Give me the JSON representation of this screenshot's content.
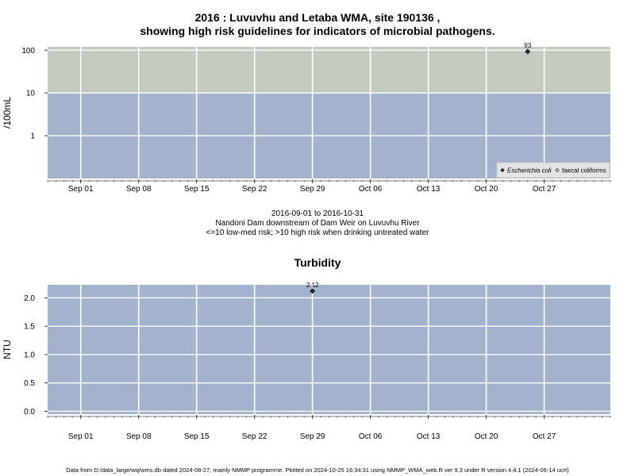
{
  "titles": {
    "main_line1": "2016 : Luvuvhu and Letaba WMA, site 190136 ,",
    "main_line2": "showing high risk guidelines for indicators of microbial pathogens.",
    "turbidity": "Turbidity"
  },
  "subtitle": {
    "date_range": "2016-09-01 to 2016-10-31",
    "site_desc": "Nandoni Dam downstream of Dam Weir on Luvuvhu River",
    "risk_note": "<=10 low-med risk; >10 high risk when drinking untreated water"
  },
  "footer": "Data from D:/data_large/wq/wms.db dated 2024-08-27, mainly NMMP programme. Plotted on 2024-10-25 16:34:31 using NMMP_WMA_web.R ver 9.3 under R version 4.4.1 (2024-06-14 ucrt)",
  "colors": {
    "panel_low": "#a3b3cd",
    "panel_high": "#c3cbbf",
    "grid": "#ffffff",
    "point": "#2a2a2a"
  },
  "chart_data": [
    {
      "type": "scatter",
      "name": "microbial",
      "ylabel": "/100mL",
      "yscale": "log",
      "ylim": [
        0.1,
        120
      ],
      "yticks": [
        1,
        10,
        100
      ],
      "ytick_labels": [
        "1",
        "10",
        "100"
      ],
      "xlim": [
        "2016-08-28",
        "2016-11-04"
      ],
      "xticks": [
        "2016-09-01",
        "2016-09-08",
        "2016-09-15",
        "2016-09-22",
        "2016-09-29",
        "2016-10-06",
        "2016-10-13",
        "2016-10-20",
        "2016-10-27"
      ],
      "xtick_labels": [
        "Sep 01",
        "Sep 08",
        "Sep 15",
        "Sep 22",
        "Sep 29",
        "Oct 06",
        "Oct 13",
        "Oct 20",
        "Oct 27"
      ],
      "guideline_bands": [
        {
          "from": 0.1,
          "to": 10,
          "risk": "low-med"
        },
        {
          "from": 10,
          "to": 120,
          "risk": "high"
        }
      ],
      "legend": {
        "placement": "bottom-right",
        "entries": [
          {
            "label": "Escherichia coli",
            "marker": "filled-diamond",
            "italic": true
          },
          {
            "label": "faecal coliforms",
            "marker": "open-diamond",
            "italic": false
          }
        ]
      },
      "series": [
        {
          "name": "Escherichia coli",
          "points": [
            {
              "x": "2016-10-25",
              "y": 93,
              "label": "93"
            }
          ]
        }
      ]
    },
    {
      "type": "scatter",
      "name": "turbidity",
      "ylabel": "NTU",
      "yscale": "linear",
      "ylim": [
        -0.05,
        2.23
      ],
      "yticks": [
        0,
        0.5,
        1,
        1.5,
        2
      ],
      "ytick_labels": [
        "0.0",
        "0.5",
        "1.0",
        "1.5",
        "2.0"
      ],
      "xlim": [
        "2016-08-28",
        "2016-11-04"
      ],
      "xticks": [
        "2016-09-01",
        "2016-09-08",
        "2016-09-15",
        "2016-09-22",
        "2016-09-29",
        "2016-10-06",
        "2016-10-13",
        "2016-10-20",
        "2016-10-27"
      ],
      "xtick_labels": [
        "Sep 01",
        "Sep 08",
        "Sep 15",
        "Sep 22",
        "Sep 29",
        "Oct 06",
        "Oct 13",
        "Oct 20",
        "Oct 27"
      ],
      "series": [
        {
          "name": "Turbidity",
          "points": [
            {
              "x": "2016-09-29",
              "y": 2.12,
              "label": "2.12"
            }
          ]
        }
      ]
    }
  ]
}
